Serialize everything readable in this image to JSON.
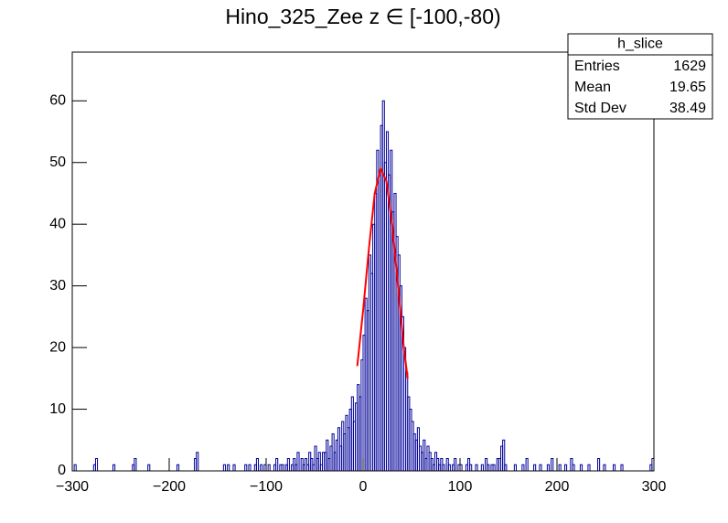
{
  "chart_data": {
    "type": "histogram",
    "title": "Hino_325_Zee z  ∈ [-100,-80)",
    "color": "#000099",
    "bins": [
      -300,
      -298,
      -296,
      -294,
      -292,
      -290,
      -288,
      -286,
      -284,
      -282,
      -280,
      -278,
      -276,
      -274,
      -272,
      -270,
      -268,
      -266,
      -264,
      -262,
      -260,
      -258,
      -256,
      -254,
      -252,
      -250,
      -248,
      -246,
      -244,
      -242,
      -240,
      -238,
      -236,
      -234,
      -232,
      -230,
      -228,
      -226,
      -224,
      -222,
      -220,
      -218,
      -216,
      -214,
      -212,
      -210,
      -208,
      -206,
      -204,
      -202,
      -200,
      -198,
      -196,
      -194,
      -192,
      -190,
      -188,
      -186,
      -184,
      -182,
      -180,
      -178,
      -176,
      -174,
      -172,
      -170,
      -168,
      -166,
      -164,
      -162,
      -160,
      -158,
      -156,
      -154,
      -152,
      -150,
      -148,
      -146,
      -144,
      -142,
      -140,
      -138,
      -136,
      -134,
      -132,
      -130,
      -128,
      -126,
      -124,
      -122,
      -120,
      -118,
      -116,
      -114,
      -112,
      -110,
      -108,
      -106,
      -104,
      -102,
      -100,
      -98,
      -96,
      -94,
      -92,
      -90,
      -88,
      -86,
      -84,
      -82,
      -80,
      -78,
      -76,
      -74,
      -72,
      -70,
      -68,
      -66,
      -64,
      -62,
      -60,
      -58,
      -56,
      -54,
      -52,
      -50,
      -48,
      -46,
      -44,
      -42,
      -40,
      -38,
      -36,
      -34,
      -32,
      -30,
      -28,
      -26,
      -24,
      -22,
      -20,
      -18,
      -16,
      -14,
      -12,
      -10,
      -8,
      -6,
      -4,
      -2,
      0,
      2,
      4,
      6,
      8,
      10,
      12,
      14,
      16,
      18,
      20,
      22,
      24,
      26,
      28,
      30,
      32,
      34,
      36,
      38,
      40,
      42,
      44,
      46,
      48,
      50,
      52,
      54,
      56,
      58,
      60,
      62,
      64,
      66,
      68,
      70,
      72,
      74,
      76,
      78,
      80,
      82,
      84,
      86,
      88,
      90,
      92,
      94,
      96,
      98,
      100,
      102,
      104,
      106,
      108,
      110,
      112,
      114,
      116,
      118,
      120,
      122,
      124,
      126,
      128,
      130,
      132,
      134,
      136,
      138,
      140,
      142,
      144,
      146,
      148,
      150,
      152,
      154,
      156,
      158,
      160,
      162,
      164,
      166,
      168,
      170,
      172,
      174,
      176,
      178,
      180,
      182,
      184,
      186,
      188,
      190,
      192,
      194,
      196,
      198,
      200,
      202,
      204,
      206,
      208,
      210,
      212,
      214,
      216,
      218,
      220,
      222,
      224,
      226,
      228,
      230,
      232,
      234,
      236,
      238,
      240,
      242,
      244,
      246,
      248,
      250,
      252,
      254,
      256,
      258,
      260,
      262,
      264,
      266,
      268,
      270,
      272,
      274,
      276,
      278,
      280,
      282,
      284,
      286,
      288,
      290,
      292,
      294,
      296,
      298,
      300
    ],
    "values": [
      0,
      1,
      0,
      0,
      0,
      0,
      0,
      0,
      0,
      0,
      0,
      1,
      2,
      0,
      0,
      0,
      0,
      0,
      0,
      0,
      0,
      1,
      0,
      0,
      0,
      0,
      0,
      0,
      0,
      0,
      0,
      1,
      2,
      0,
      0,
      0,
      0,
      0,
      0,
      1,
      0,
      0,
      0,
      0,
      0,
      0,
      0,
      0,
      0,
      0,
      0,
      0,
      0,
      0,
      1,
      0,
      0,
      0,
      0,
      0,
      0,
      0,
      0,
      2,
      3,
      0,
      0,
      0,
      0,
      0,
      0,
      0,
      0,
      0,
      0,
      0,
      0,
      0,
      1,
      0,
      1,
      0,
      0,
      1,
      0,
      0,
      0,
      0,
      0,
      1,
      0,
      1,
      0,
      0,
      1,
      2,
      0,
      1,
      0,
      1,
      0,
      1,
      0,
      0,
      1,
      2,
      0,
      1,
      1,
      0,
      1,
      2,
      0,
      1,
      2,
      1,
      3,
      0,
      2,
      1,
      2,
      1,
      3,
      2,
      1,
      4,
      2,
      3,
      1,
      3,
      3,
      5,
      2,
      4,
      6,
      3,
      5,
      7,
      4,
      8,
      6,
      9,
      7,
      10,
      12,
      8,
      11,
      14,
      12,
      18,
      22,
      28,
      26,
      35,
      32,
      40,
      45,
      52,
      48,
      56,
      60,
      50,
      55,
      48,
      52,
      42,
      45,
      38,
      35,
      30,
      25,
      20,
      16,
      12,
      10,
      8,
      6,
      5,
      7,
      4,
      3,
      5,
      2,
      4,
      3,
      2,
      1,
      3,
      2,
      1,
      2,
      1,
      0,
      2,
      1,
      0,
      1,
      2,
      0,
      1,
      1,
      0,
      0,
      1,
      2,
      1,
      0,
      0,
      1,
      0,
      0,
      1,
      0,
      2,
      1,
      0,
      1,
      1,
      0,
      2,
      2,
      4,
      5,
      1,
      0,
      0,
      0,
      0,
      1,
      0,
      0,
      0,
      1,
      0,
      2,
      0,
      0,
      0,
      1,
      0,
      0,
      1,
      0,
      0,
      0,
      1,
      0,
      2,
      0,
      0,
      0,
      1,
      0,
      0,
      1,
      0,
      0,
      2,
      1,
      0,
      0,
      0,
      1,
      0,
      0,
      0,
      1,
      0,
      0,
      0,
      0,
      2,
      0,
      0,
      1,
      0,
      0,
      0,
      0,
      1,
      0,
      0,
      0,
      1,
      0,
      0,
      0,
      0,
      0,
      0,
      0,
      0,
      0,
      0,
      0,
      0,
      0,
      0,
      1,
      2
    ],
    "fit": {
      "color": "#ff0000",
      "x": [
        -6,
        0,
        6,
        12,
        18,
        24,
        30,
        36,
        42,
        46
      ],
      "values": [
        17,
        26,
        36,
        45,
        49,
        47,
        40,
        30,
        20,
        15
      ]
    },
    "xlim": [
      -300,
      300
    ],
    "xticks": [
      {
        "value": -300,
        "label": "−300"
      },
      {
        "value": -200,
        "label": "−200"
      },
      {
        "value": -100,
        "label": "−100"
      },
      0,
      100,
      200,
      300
    ],
    "ylim": [
      0,
      67.9
    ],
    "yticks": [
      0,
      10,
      20,
      30,
      40,
      50,
      60
    ],
    "stats": {
      "title": "h_slice",
      "rows": [
        [
          "Entries",
          "1629"
        ],
        [
          "Mean",
          "19.65"
        ],
        [
          "Std Dev",
          "38.49"
        ]
      ]
    }
  }
}
